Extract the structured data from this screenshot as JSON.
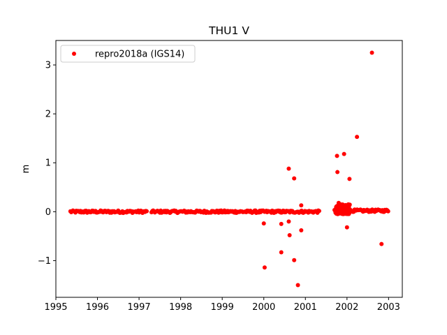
{
  "chart_data": {
    "type": "scatter",
    "title": "THU1 V",
    "xlabel": "",
    "ylabel": "m",
    "xlim": [
      1995.0,
      2003.33
    ],
    "ylim": [
      -1.75,
      3.5
    ],
    "xticks": [
      1995,
      1996,
      1997,
      1998,
      1999,
      2000,
      2001,
      2002,
      2003
    ],
    "xtick_labels": [
      "1995",
      "1996",
      "1997",
      "1998",
      "1999",
      "2000",
      "2001",
      "2002",
      "2003"
    ],
    "yticks": [
      -1,
      0,
      1,
      2,
      3
    ],
    "ytick_labels": [
      "−1",
      "0",
      "1",
      "2",
      "3"
    ],
    "grid": false,
    "legend_position": "upper left",
    "series": [
      {
        "name": "repro2018a (IGS14)",
        "color": "#ff0000",
        "marker": "circle",
        "baseline_segments": [
          {
            "x_start": 1995.35,
            "x_end": 1997.2,
            "y": 0.0
          },
          {
            "x_start": 1997.3,
            "x_end": 2001.35,
            "y": 0.0
          },
          {
            "x_start": 2001.7,
            "x_end": 2003.0,
            "y": 0.02
          }
        ],
        "outliers": [
          {
            "x": 2000.0,
            "y": -0.24
          },
          {
            "x": 2000.02,
            "y": -1.14
          },
          {
            "x": 2000.42,
            "y": -0.25
          },
          {
            "x": 2000.42,
            "y": -0.83
          },
          {
            "x": 2000.6,
            "y": 0.88
          },
          {
            "x": 2000.6,
            "y": -0.2
          },
          {
            "x": 2000.62,
            "y": -0.48
          },
          {
            "x": 2000.73,
            "y": 0.68
          },
          {
            "x": 2000.73,
            "y": -0.99
          },
          {
            "x": 2000.82,
            "y": -1.5
          },
          {
            "x": 2000.9,
            "y": 0.13
          },
          {
            "x": 2000.9,
            "y": -0.38
          },
          {
            "x": 2001.76,
            "y": 1.14
          },
          {
            "x": 2001.77,
            "y": 0.81
          },
          {
            "x": 2001.8,
            "y": 0.18
          },
          {
            "x": 2001.85,
            "y": 0.15
          },
          {
            "x": 2001.93,
            "y": 1.18
          },
          {
            "x": 2002.0,
            "y": -0.32
          },
          {
            "x": 2002.06,
            "y": 0.67
          },
          {
            "x": 2002.24,
            "y": 1.53
          },
          {
            "x": 2002.6,
            "y": 3.25
          },
          {
            "x": 2002.83,
            "y": -0.66
          }
        ]
      }
    ]
  }
}
